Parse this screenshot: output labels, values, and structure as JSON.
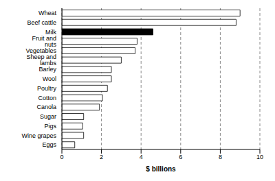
{
  "chart_data": {
    "type": "bar",
    "orientation": "horizontal",
    "categories": [
      "Wheat",
      "Beef cattle",
      "Milk",
      "Fruit and nuts",
      "Vegetables",
      "Sheep and lambs",
      "Barley",
      "Wool",
      "Poultry",
      "Cotton",
      "Canola",
      "Sugar",
      "Pigs",
      "Wine grapes",
      "Eggs"
    ],
    "values": [
      9.0,
      8.8,
      4.6,
      3.8,
      3.7,
      3.0,
      2.5,
      2.5,
      2.3,
      2.05,
      1.9,
      1.1,
      1.05,
      1.1,
      0.65
    ],
    "colors": [
      "#ffffff",
      "#ffffff",
      "#000000",
      "#ffffff",
      "#ffffff",
      "#ffffff",
      "#ffffff",
      "#ffffff",
      "#ffffff",
      "#ffffff",
      "#ffffff",
      "#ffffff",
      "#ffffff",
      "#ffffff",
      "#ffffff"
    ],
    "xlabel": "$ billions",
    "xlim": [
      0,
      10
    ],
    "xticks": [
      0,
      2,
      4,
      6,
      8,
      10
    ],
    "grid": true
  }
}
